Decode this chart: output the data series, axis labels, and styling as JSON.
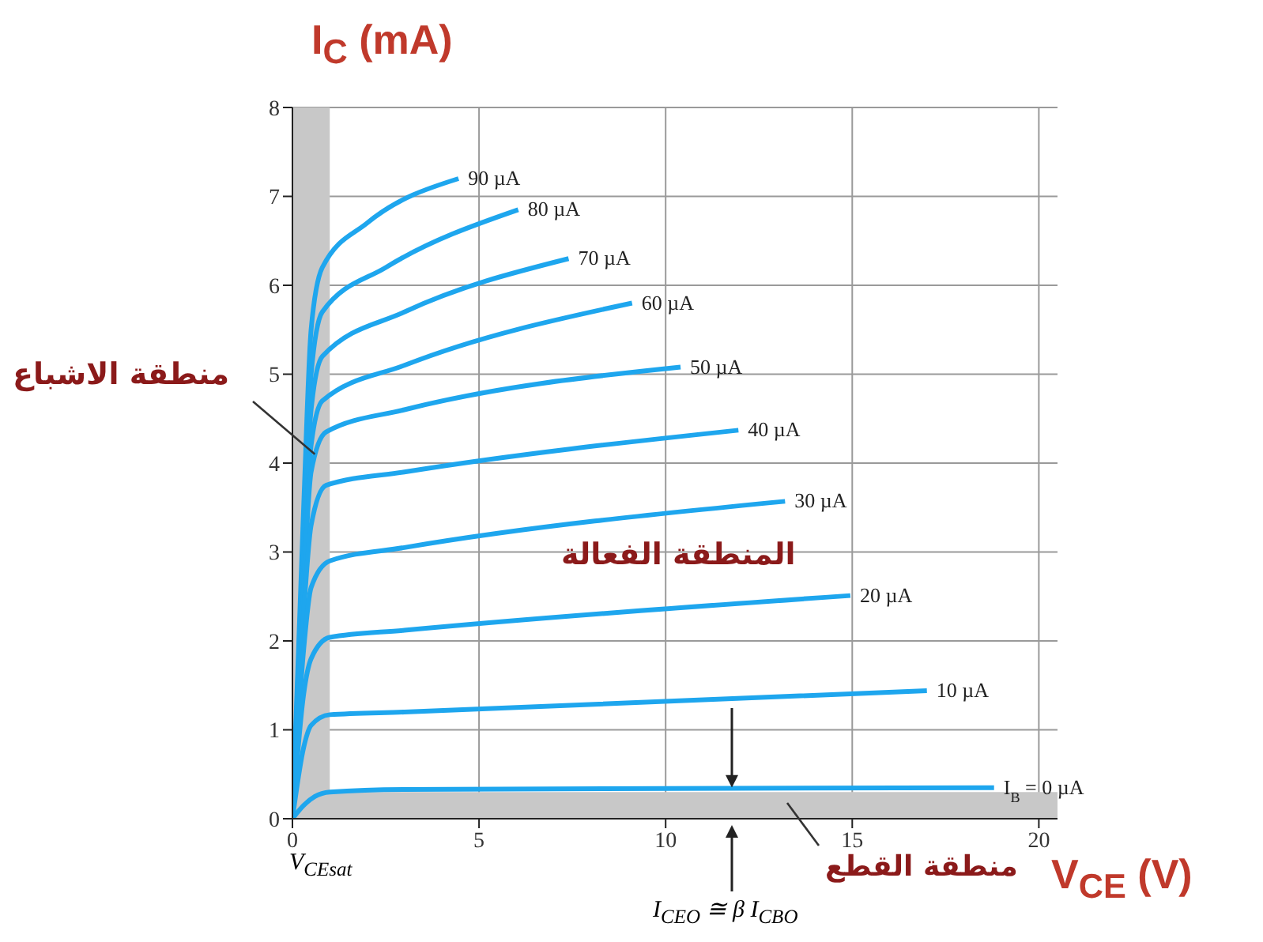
{
  "chart_data": {
    "type": "line",
    "xlabel": "V$_{CE}$ (V)",
    "ylabel": "I$_{C}$ (mA)",
    "xlim": [
      0,
      20.5
    ],
    "xticks": [
      0,
      5,
      10,
      15,
      20
    ],
    "ylim": [
      0,
      8
    ],
    "yticks": [
      0,
      1,
      2,
      3,
      4,
      5,
      6,
      7,
      8
    ],
    "grid": true,
    "series": [
      {
        "name": "90 µA",
        "color": "#1ea6ee",
        "x": [
          0,
          0.3,
          0.5,
          0.8,
          2,
          4.45
        ],
        "values": [
          0,
          3.5,
          5.5,
          6.2,
          6.7,
          7.2
        ]
      },
      {
        "name": "80 µA",
        "color": "#1ea6ee",
        "x": [
          0,
          0.3,
          0.5,
          0.8,
          2.5,
          6.05
        ],
        "values": [
          0,
          3.2,
          5,
          5.7,
          6.2,
          6.85
        ]
      },
      {
        "name": "70 µA",
        "color": "#1ea6ee",
        "x": [
          0,
          0.3,
          0.5,
          0.8,
          3,
          7.4
        ],
        "values": [
          0,
          3,
          4.6,
          5.2,
          5.7,
          6.3
        ]
      },
      {
        "name": "60 µA",
        "color": "#1ea6ee",
        "x": [
          0,
          0.3,
          0.5,
          0.8,
          3,
          9.1
        ],
        "values": [
          0,
          2.8,
          4.2,
          4.7,
          5.1,
          5.8
        ]
      },
      {
        "name": "50 µA",
        "color": "#1ea6ee",
        "x": [
          0,
          0.3,
          0.5,
          0.9,
          3,
          10.4
        ],
        "values": [
          0,
          2.6,
          3.9,
          4.35,
          4.6,
          5.08
        ]
      },
      {
        "name": "40 µA",
        "color": "#1ea6ee",
        "x": [
          0,
          0.3,
          0.5,
          0.9,
          3,
          11.95
        ],
        "values": [
          0,
          2.3,
          3.3,
          3.75,
          3.9,
          4.37
        ]
      },
      {
        "name": "30 µA",
        "color": "#1ea6ee",
        "x": [
          0,
          0.3,
          0.5,
          1,
          3,
          13.2
        ],
        "values": [
          0,
          1.9,
          2.6,
          2.9,
          3.05,
          3.57
        ]
      },
      {
        "name": "20 µA",
        "color": "#1ea6ee",
        "x": [
          0,
          0.3,
          0.5,
          1,
          3,
          14.95
        ],
        "values": [
          0,
          1.4,
          1.8,
          2.04,
          2.12,
          2.51
        ]
      },
      {
        "name": "10 µA",
        "color": "#1ea6ee",
        "x": [
          0,
          0.3,
          0.5,
          1,
          3,
          17
        ],
        "values": [
          0,
          0.8,
          1.05,
          1.17,
          1.2,
          1.44
        ]
      },
      {
        "name": "I$_{B}$ = 0 µA",
        "color": "#1ea6ee",
        "x": [
          0,
          0.3,
          0.6,
          1,
          3,
          18.8
        ],
        "values": [
          0,
          0.15,
          0.25,
          0.3,
          0.33,
          0.35
        ]
      }
    ],
    "bands": [
      {
        "axis": "x",
        "from": 0,
        "to": 1,
        "color": "#c8c8c8"
      },
      {
        "axis": "y",
        "from": 0,
        "to": 0.3,
        "color": "#c8c8c8"
      }
    ],
    "annotations": [
      {
        "text": "منطقة الاشباع",
        "x": 0.6,
        "y": 4.1
      },
      "المنطقة الفعالة",
      "منطقة القطع",
      "V$_{CE}$$_{sat}$",
      "I$_{CEO}$ ≅ β I$_{CBO}$"
    ]
  }
}
